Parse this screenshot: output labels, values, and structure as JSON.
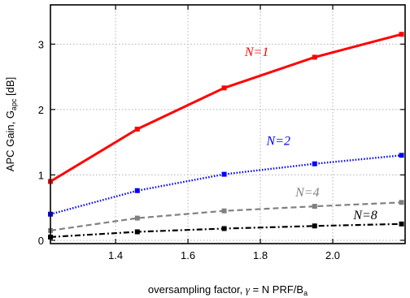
{
  "chart_data": {
    "type": "line",
    "xlabel_prefix": "oversampling factor, ",
    "xlabel_gamma": "γ",
    "xlabel_main": " = N PRF/B",
    "xlabel_sub": "a",
    "ylabel_main": "APC Gain, G",
    "ylabel_sub": "apc",
    "ylabel_unit": " [dB]",
    "xlim": [
      1.22,
      2.2
    ],
    "ylim": [
      -0.05,
      3.6
    ],
    "xticks": [
      1.4,
      1.6,
      1.8,
      2.0
    ],
    "xtick_labels": [
      "1.4",
      "1.6",
      "1.8",
      "2.0"
    ],
    "yticks": [
      0,
      1,
      2,
      3
    ],
    "ytick_labels": [
      "0",
      "1",
      "2",
      "3"
    ],
    "grid": true,
    "x": [
      1.22,
      1.46,
      1.7,
      1.95,
      2.19
    ],
    "series": [
      {
        "name": "N=1",
        "color": "#ff0000",
        "style": "solid",
        "values": [
          0.9,
          1.7,
          2.33,
          2.8,
          3.15
        ],
        "label_at": [
          1.79,
          2.82
        ]
      },
      {
        "name": "N=2",
        "color": "#0000ff",
        "style": "dotted",
        "values": [
          0.4,
          0.76,
          1.01,
          1.17,
          1.3
        ],
        "label_at": [
          1.85,
          1.46
        ]
      },
      {
        "name": "N=4",
        "color": "#808080",
        "style": "dashed",
        "values": [
          0.15,
          0.34,
          0.45,
          0.52,
          0.58
        ],
        "label_at": [
          1.93,
          0.67
        ]
      },
      {
        "name": "N=8",
        "color": "#000000",
        "style": "dashdot",
        "values": [
          0.05,
          0.13,
          0.18,
          0.22,
          0.25
        ],
        "label_at": [
          2.09,
          0.32
        ]
      }
    ]
  }
}
